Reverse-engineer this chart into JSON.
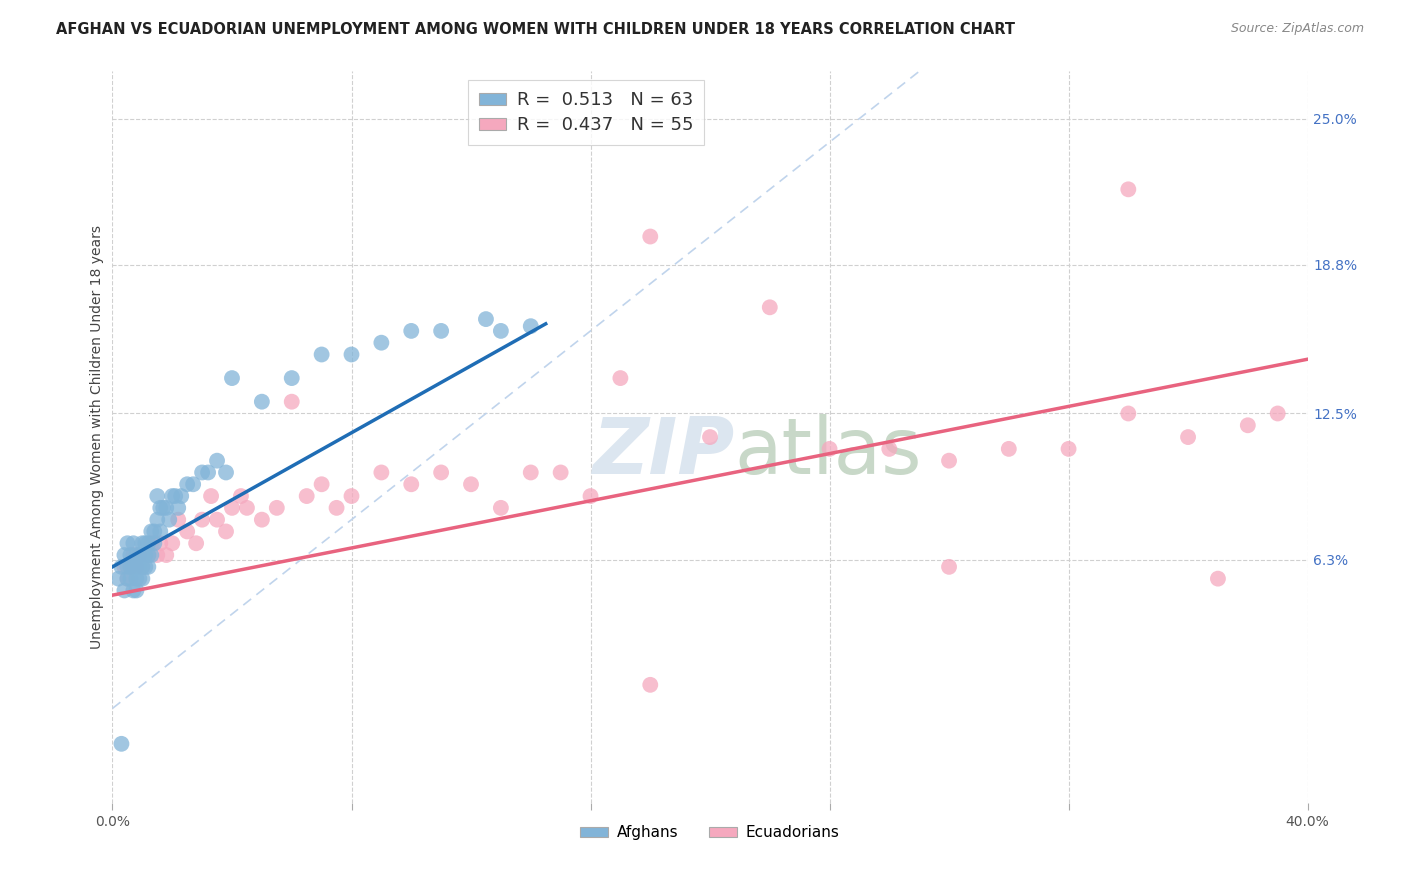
{
  "title": "AFGHAN VS ECUADORIAN UNEMPLOYMENT AMONG WOMEN WITH CHILDREN UNDER 18 YEARS CORRELATION CHART",
  "source": "Source: ZipAtlas.com",
  "ylabel": "Unemployment Among Women with Children Under 18 years",
  "xlim": [
    0.0,
    0.4
  ],
  "ylim": [
    -0.04,
    0.27
  ],
  "ytick_right_vals": [
    0.063,
    0.125,
    0.188,
    0.25
  ],
  "ytick_right_labels": [
    "6.3%",
    "12.5%",
    "18.8%",
    "25.0%"
  ],
  "afghan_R": 0.513,
  "afghan_N": 63,
  "ecuadorian_R": 0.437,
  "ecuadorian_N": 55,
  "afghan_color": "#82b4d8",
  "ecuadorian_color": "#f5a8be",
  "afghan_line_color": "#1f6db5",
  "ecuadorian_line_color": "#e8637f",
  "diagonal_color": "#c0d4ec",
  "background_color": "#ffffff",
  "grid_color": "#d0d0d0",
  "watermark_color": "#dce6f0",
  "afghan_line_x": [
    0.0,
    0.145
  ],
  "afghan_line_y": [
    0.06,
    0.163
  ],
  "ecuadorian_line_x": [
    0.0,
    0.4
  ],
  "ecuadorian_line_y": [
    0.048,
    0.148
  ],
  "afghan_x": [
    0.002,
    0.003,
    0.004,
    0.004,
    0.005,
    0.005,
    0.005,
    0.006,
    0.006,
    0.006,
    0.007,
    0.007,
    0.007,
    0.008,
    0.008,
    0.008,
    0.008,
    0.009,
    0.009,
    0.009,
    0.01,
    0.01,
    0.01,
    0.01,
    0.011,
    0.011,
    0.011,
    0.012,
    0.012,
    0.012,
    0.013,
    0.013,
    0.014,
    0.014,
    0.015,
    0.015,
    0.016,
    0.016,
    0.017,
    0.018,
    0.019,
    0.02,
    0.021,
    0.022,
    0.023,
    0.025,
    0.027,
    0.03,
    0.032,
    0.035,
    0.038,
    0.04,
    0.05,
    0.06,
    0.07,
    0.08,
    0.09,
    0.1,
    0.11,
    0.125,
    0.13,
    0.14,
    0.003
  ],
  "afghan_y": [
    0.055,
    0.06,
    0.065,
    0.05,
    0.07,
    0.06,
    0.055,
    0.06,
    0.065,
    0.055,
    0.07,
    0.06,
    0.05,
    0.065,
    0.06,
    0.055,
    0.05,
    0.065,
    0.06,
    0.055,
    0.07,
    0.065,
    0.06,
    0.055,
    0.07,
    0.065,
    0.06,
    0.07,
    0.065,
    0.06,
    0.075,
    0.065,
    0.075,
    0.07,
    0.09,
    0.08,
    0.085,
    0.075,
    0.085,
    0.085,
    0.08,
    0.09,
    0.09,
    0.085,
    0.09,
    0.095,
    0.095,
    0.1,
    0.1,
    0.105,
    0.1,
    0.14,
    0.13,
    0.14,
    0.15,
    0.15,
    0.155,
    0.16,
    0.16,
    0.165,
    0.16,
    0.162,
    -0.015
  ],
  "ecuadorian_x": [
    0.004,
    0.005,
    0.006,
    0.007,
    0.008,
    0.009,
    0.01,
    0.012,
    0.013,
    0.015,
    0.016,
    0.018,
    0.02,
    0.022,
    0.025,
    0.028,
    0.03,
    0.033,
    0.035,
    0.038,
    0.04,
    0.043,
    0.045,
    0.05,
    0.055,
    0.06,
    0.065,
    0.07,
    0.075,
    0.08,
    0.09,
    0.1,
    0.11,
    0.12,
    0.13,
    0.14,
    0.15,
    0.16,
    0.17,
    0.18,
    0.2,
    0.22,
    0.24,
    0.26,
    0.28,
    0.3,
    0.32,
    0.34,
    0.36,
    0.37,
    0.38,
    0.39,
    0.28,
    0.18,
    0.34
  ],
  "ecuadorian_y": [
    0.06,
    0.055,
    0.06,
    0.065,
    0.06,
    0.065,
    0.06,
    0.065,
    0.07,
    0.065,
    0.07,
    0.065,
    0.07,
    0.08,
    0.075,
    0.07,
    0.08,
    0.09,
    0.08,
    0.075,
    0.085,
    0.09,
    0.085,
    0.08,
    0.085,
    0.13,
    0.09,
    0.095,
    0.085,
    0.09,
    0.1,
    0.095,
    0.1,
    0.095,
    0.085,
    0.1,
    0.1,
    0.09,
    0.14,
    0.2,
    0.115,
    0.17,
    0.11,
    0.11,
    0.105,
    0.11,
    0.11,
    0.22,
    0.115,
    0.055,
    0.12,
    0.125,
    0.06,
    0.01,
    0.125
  ]
}
